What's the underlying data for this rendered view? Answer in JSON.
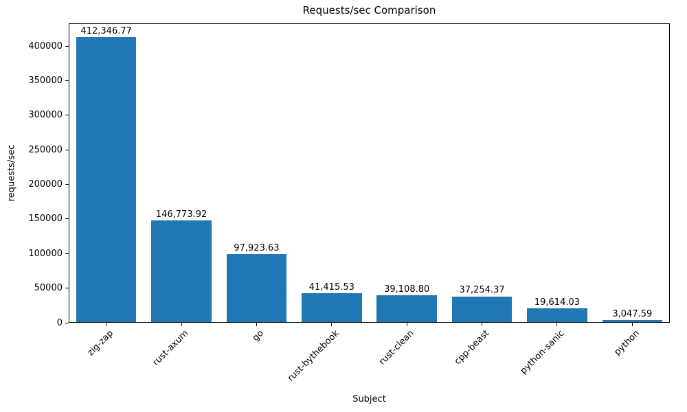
{
  "chart_data": {
    "type": "bar",
    "title": "Requests/sec Comparison",
    "xlabel": "Subject",
    "ylabel": "requests/sec",
    "categories": [
      "zig-zap",
      "rust-axum",
      "go",
      "rust-bythebook",
      "rust-clean",
      "cpp-beast",
      "python-sanic",
      "python"
    ],
    "values": [
      412346.77,
      146773.92,
      97923.63,
      41415.53,
      39108.8,
      37254.37,
      19614.03,
      3047.59
    ],
    "value_labels": [
      "412,346.77",
      "146,773.92",
      "97,923.63",
      "41,415.53",
      "39,108.80",
      "37,254.37",
      "19,614.03",
      "3,047.59"
    ],
    "yticks": [
      0,
      50000,
      100000,
      150000,
      200000,
      250000,
      300000,
      350000,
      400000
    ],
    "ylim": [
      0,
      433000
    ],
    "bar_color": "#1f77b4",
    "grid": false,
    "legend": null
  }
}
